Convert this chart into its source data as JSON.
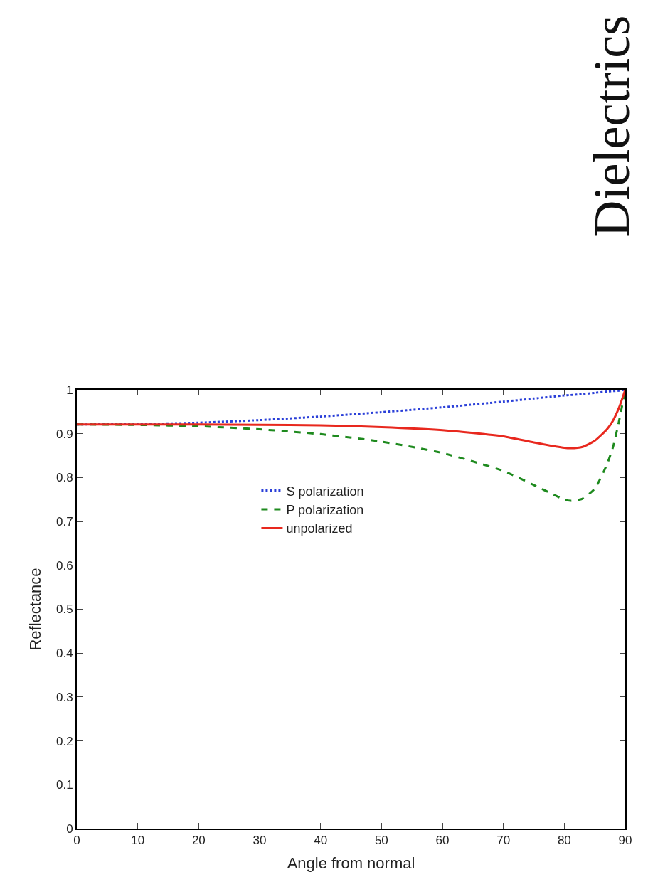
{
  "chart_data": {
    "type": "line",
    "xlabel": "Angle from normal",
    "ylabel": "Reflectance",
    "annotations": [
      "Dielectrics"
    ],
    "x": [
      0,
      10,
      20,
      30,
      40,
      50,
      60,
      70,
      75,
      80,
      81,
      83,
      85,
      87,
      88,
      89,
      90
    ],
    "series": [
      {
        "name": "S polarization",
        "color": "#2a3fd8",
        "line_style": "dotted",
        "values": [
          0.921,
          0.922,
          0.925,
          0.931,
          0.939,
          0.949,
          0.96,
          0.973,
          0.98,
          0.987,
          0.988,
          0.99,
          0.993,
          0.996,
          0.997,
          0.998,
          1.0
        ]
      },
      {
        "name": "P polarization",
        "color": "#1e8a1e",
        "line_style": "dashed",
        "values": [
          0.921,
          0.92,
          0.917,
          0.91,
          0.899,
          0.882,
          0.856,
          0.815,
          0.783,
          0.75,
          0.747,
          0.752,
          0.775,
          0.83,
          0.87,
          0.93,
          1.0
        ]
      },
      {
        "name": "unpolarized",
        "color": "#e8281e",
        "line_style": "solid",
        "values": [
          0.921,
          0.921,
          0.921,
          0.92,
          0.919,
          0.915,
          0.908,
          0.894,
          0.88,
          0.868,
          0.867,
          0.87,
          0.884,
          0.91,
          0.93,
          0.96,
          1.0
        ]
      }
    ],
    "xlim": [
      0,
      90
    ],
    "xticks": [
      0,
      10,
      20,
      30,
      40,
      50,
      60,
      70,
      80,
      90
    ],
    "ylim": [
      0,
      1
    ],
    "yticks": [
      0,
      0.1,
      0.2,
      0.3,
      0.4,
      0.5,
      0.6,
      0.7,
      0.8,
      0.9,
      1
    ],
    "legend": "top",
    "marker": "none"
  }
}
